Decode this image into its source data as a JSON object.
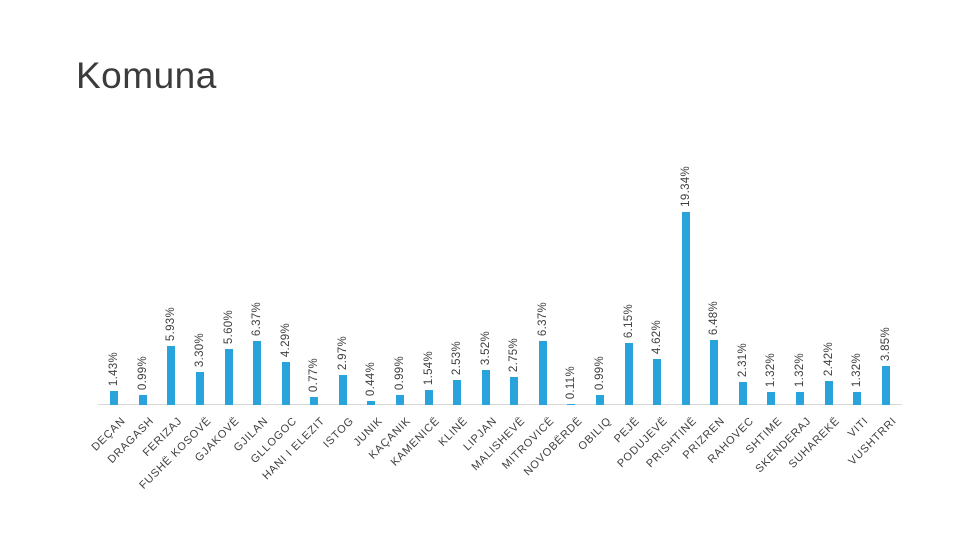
{
  "page": {
    "title": "Komuna"
  },
  "chart_data": {
    "type": "bar",
    "title": "Komuna",
    "xlabel": "",
    "ylabel": "",
    "unit": "%",
    "ylim": [
      0,
      20
    ],
    "grid": false,
    "legend": "none",
    "categories": [
      "DEÇAN",
      "DRAGASH",
      "FERIZAJ",
      "FUSHË KOSOVË",
      "GJAKOVË",
      "GJILAN",
      "GLLOGOC",
      "HANI I ELEZIT",
      "ISTOG",
      "JUNIK",
      "KAÇANIK",
      "KAMENICË",
      "KLINË",
      "LIPJAN",
      "MALISHEVË",
      "MITROVICË",
      "NOVOBËRDË",
      "OBILIQ",
      "PEJË",
      "PODUJEVË",
      "PRISHTINË",
      "PRIZREN",
      "RAHOVEC",
      "SHTIME",
      "SKENDERAJ",
      "SUHAREKË",
      "VITI",
      "VUSHTRRI"
    ],
    "values": [
      1.43,
      0.99,
      5.93,
      3.3,
      5.6,
      6.37,
      4.29,
      0.77,
      2.97,
      0.44,
      0.99,
      1.54,
      2.53,
      3.52,
      2.75,
      6.37,
      0.11,
      0.99,
      6.15,
      4.62,
      19.34,
      6.48,
      2.31,
      1.32,
      1.32,
      2.42,
      1.32,
      3.85
    ],
    "value_labels": [
      "1.43%",
      "0.99%",
      "5.93%",
      "3.30%",
      "5.60%",
      "6.37%",
      "4.29%",
      "0.77%",
      "2.97%",
      "0.44%",
      "0.99%",
      "1.54%",
      "2.53%",
      "3.52%",
      "2.75%",
      "6.37%",
      "0.11%",
      "0.99%",
      "6.15%",
      "4.62%",
      "19.34%",
      "6.48%",
      "2.31%",
      "1.32%",
      "1.32%",
      "2.42%",
      "1.32%",
      "3.85%"
    ],
    "colors": {
      "bar": "#29A3DC",
      "axis_line": "#D9D9D9",
      "label_text": "#404040",
      "title_text": "#3B3B3B",
      "background": "#FFFFFF"
    }
  }
}
